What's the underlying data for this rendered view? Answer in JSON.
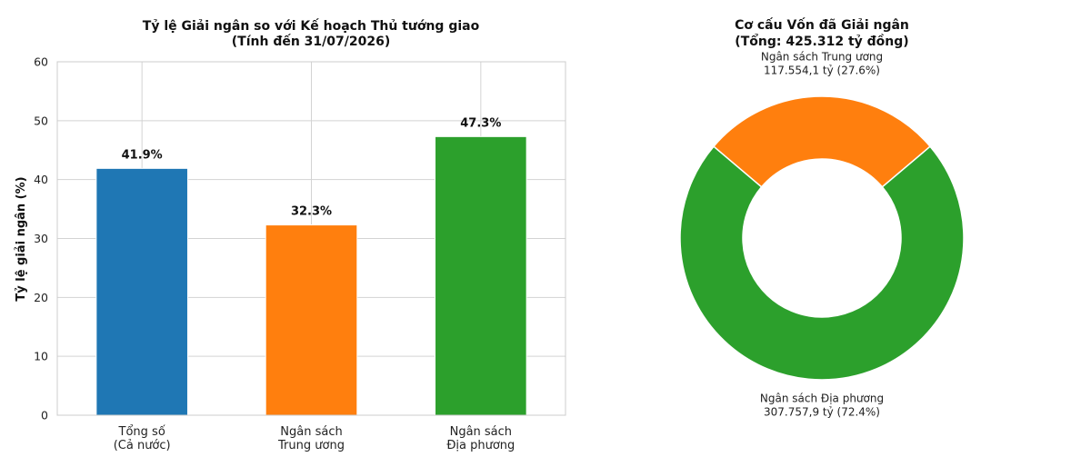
{
  "chart_data": [
    {
      "type": "bar",
      "title": [
        "Tỷ lệ Giải ngân so với Kế hoạch Thủ tướng giao",
        "(Tính đến 31/07/2026)"
      ],
      "ylabel": "Tỷ lệ giải ngân (%)",
      "xlabel": "",
      "ylim": [
        0,
        60
      ],
      "yticks": [
        0,
        10,
        20,
        30,
        40,
        50,
        60
      ],
      "grid": true,
      "categories": [
        [
          "Tổng số",
          "(Cả nước)"
        ],
        [
          "Ngân sách",
          "Trung ương"
        ],
        [
          "Ngân sách",
          "Địa phương"
        ]
      ],
      "values": [
        41.9,
        32.3,
        47.3
      ],
      "data_labels": [
        "41.9%",
        "32.3%",
        "47.3%"
      ],
      "colors": [
        "#1f77b4",
        "#ff7f0e",
        "#2ca02c"
      ]
    },
    {
      "type": "pie",
      "donut": true,
      "title": [
        "Cơ cấu Vốn đã Giải ngân",
        "(Tổng: 425.312 tỷ đồng)"
      ],
      "slices": [
        {
          "label": [
            "Ngân sách Trung ương",
            "117.554,1 tỷ (27.6%)"
          ],
          "value": 117554.1,
          "percent": 27.6,
          "color": "#ff7f0e"
        },
        {
          "label": [
            "Ngân sách Địa phương",
            "307.757,9 tỷ (72.4%)"
          ],
          "value": 307757.9,
          "percent": 72.4,
          "color": "#2ca02c"
        }
      ]
    }
  ]
}
